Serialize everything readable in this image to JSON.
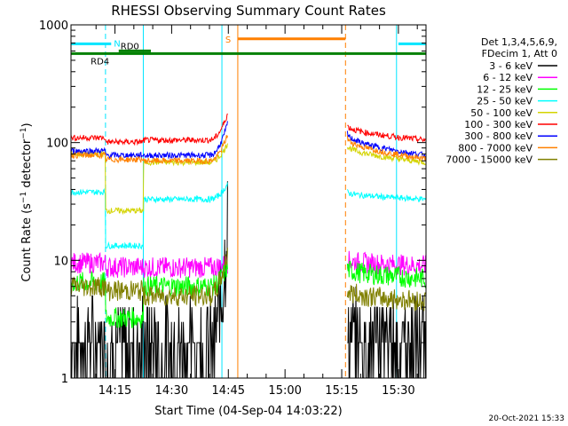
{
  "chart_data": {
    "type": "line",
    "title": "RHESSI Observing Summary Count Rates",
    "xlabel": "Start Time (04-Sep-04 14:03:22)",
    "ylabel_main": "Count Rate (s",
    "ylabel_sup1": "−1",
    "ylabel_mid": " detector",
    "ylabel_sup2": "−1",
    "ylabel_end": ")",
    "y_scale": "log",
    "ylim": [
      1,
      1000
    ],
    "xlim_minutes": [
      3.37,
      47.75
    ],
    "y_ticks": [
      {
        "v": 1,
        "label": "1"
      },
      {
        "v": 10,
        "label": "10"
      },
      {
        "v": 100,
        "label": "100"
      },
      {
        "v": 1000,
        "label": "1000"
      }
    ],
    "x_ticks": [
      {
        "m": 15,
        "label": "14:15"
      },
      {
        "m": 30,
        "label": "14:30"
      },
      {
        "m": 45,
        "label": "14:45"
      },
      {
        "m": 60,
        "label": "15:00"
      },
      {
        "m": 75,
        "label": "15:15"
      },
      {
        "m": 90,
        "label": "15:30"
      }
    ],
    "legend_header": [
      "Det 1,3,4,5,6,9,",
      "FDecim 1, Att 0"
    ],
    "series": [
      {
        "name": "3 - 6 keV",
        "color": "#000000"
      },
      {
        "name": "6 - 12 keV",
        "color": "#ff00ff"
      },
      {
        "name": "12 - 25 keV",
        "color": "#00ff00"
      },
      {
        "name": "25 - 50 keV",
        "color": "#00ffff"
      },
      {
        "name": "50 - 100 keV",
        "color": "#d4d400"
      },
      {
        "name": "100 - 300 keV",
        "color": "#ff0000"
      },
      {
        "name": "300 - 800 keV",
        "color": "#0000ff"
      },
      {
        "name": "800 - 7000 keV",
        "color": "#ff8000"
      },
      {
        "name": "7000 - 15000 keV",
        "color": "#808000"
      }
    ],
    "segments": [
      {
        "label": "N",
        "color": "#00e5ff",
        "t0": 3.4,
        "t1": 14.0,
        "t2": 90.0,
        "t3": 97.3,
        "level": 690
      },
      {
        "label": "RD0",
        "color": "#008000",
        "t0": 16.0,
        "t1": 24.5,
        "level": 600
      },
      {
        "label": "RD4",
        "color": "#008000",
        "t0": 3.4,
        "t1": 97.3,
        "level": 570
      },
      {
        "label": "S",
        "color": "#ff7f00",
        "t0": 47.5,
        "t1": 76.0,
        "level": 760
      }
    ],
    "annotation_lines": [
      {
        "m": 12.5,
        "color": "#00e5ff",
        "dash": true
      },
      {
        "m": 22.5,
        "color": "#00e5ff",
        "dash": false
      },
      {
        "m": 43.3,
        "color": "#00e5ff",
        "dash": false
      },
      {
        "m": 47.5,
        "color": "#ff7f00",
        "dash": false
      },
      {
        "m": 76.0,
        "color": "#ff7f00",
        "dash": true
      },
      {
        "m": 89.5,
        "color": "#00e5ff",
        "dash": false
      },
      {
        "m": 97.3,
        "color": "#00e5ff",
        "dash": true
      }
    ],
    "data_windows": [
      {
        "from": 3.4,
        "to": 44.9
      },
      {
        "from": 76.5,
        "to": 97.3
      }
    ],
    "levels_before": {
      "100 - 300 keV": [
        110,
        105,
        180
      ],
      "300 - 800 keV": [
        85,
        78,
        150
      ],
      "800 - 7000 keV": [
        78,
        70,
        120
      ],
      "50 - 100 keV": [
        80,
        68,
        100
      ],
      "25 - 50 keV": [
        38,
        33,
        45
      ],
      "6 - 12 keV": [
        9.5,
        8.7,
        9.5
      ],
      "12 - 25 keV": [
        6.5,
        6.0,
        9.0
      ],
      "7000 - 15000 keV": [
        6.0,
        5.0,
        12
      ],
      "3 - 6 keV": [
        1.6,
        1.5,
        25
      ]
    },
    "levels_after": {
      "100 - 300 keV": [
        140,
        105
      ],
      "300 - 800 keV": [
        120,
        78
      ],
      "800 - 7000 keV": [
        110,
        73
      ],
      "50 - 100 keV": [
        95,
        68
      ],
      "25 - 50 keV": [
        38,
        33
      ],
      "6 - 12 keV": [
        10,
        9
      ],
      "12 - 25 keV": [
        8.5,
        7
      ],
      "7000 - 15000 keV": [
        5.5,
        4.5
      ],
      "3 - 6 keV": [
        1.7,
        1.6
      ]
    }
  },
  "footer_timestamp": "20-Oct-2021 15:33"
}
